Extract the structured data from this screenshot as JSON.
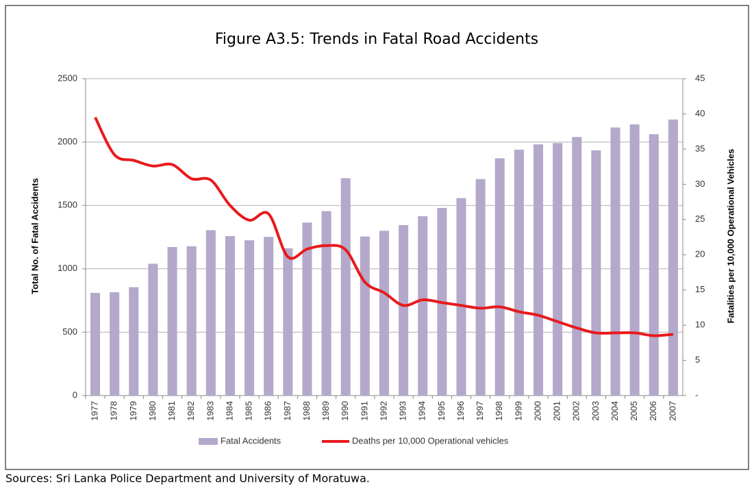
{
  "chart_data": {
    "type": "bar",
    "title": "Figure A3.5: Trends in Fatal Road Accidents",
    "y_label": "Total No. of Fatal  Accidents",
    "y2_label": "Fatalities per 10,000 Operational Vehicles",
    "source": "Sources: Sri Lanka Police Department and University of Moratuwa.",
    "categories": [
      "1977",
      "1978",
      "1979",
      "1980",
      "1981",
      "1982",
      "1983",
      "1984",
      "1985",
      "1986",
      "1987",
      "1988",
      "1989",
      "1990",
      "1991",
      "1992",
      "1993",
      "1994",
      "1995",
      "1996",
      "1997",
      "1998",
      "1999",
      "2000",
      "2001",
      "2002",
      "2003",
      "2004",
      "2005",
      "2006",
      "2007"
    ],
    "series": [
      {
        "name": "Fatal Accidents",
        "type": "bar",
        "color": "#b4a8cb",
        "values": [
          810,
          815,
          855,
          1040,
          1172,
          1178,
          1305,
          1258,
          1225,
          1252,
          1162,
          1365,
          1455,
          1715,
          1255,
          1300,
          1345,
          1415,
          1480,
          1558,
          1708,
          1872,
          1940,
          1982,
          1992,
          2040,
          1935,
          2115,
          2140,
          2062,
          2178
        ]
      },
      {
        "name": "Deaths  per 10,000 Operational vehicles",
        "type": "line",
        "axis": "y2",
        "color": "#e8191c",
        "values": [
          39.5,
          34.2,
          33.4,
          32.6,
          32.8,
          30.8,
          30.6,
          27.0,
          24.9,
          25.8,
          19.7,
          20.8,
          21.3,
          20.7,
          16.1,
          14.6,
          12.8,
          13.6,
          13.2,
          12.8,
          12.4,
          12.6,
          11.9,
          11.4,
          10.5,
          9.6,
          8.9,
          8.9,
          8.9,
          8.5,
          8.7
        ]
      }
    ],
    "ylim": [
      0,
      2500
    ],
    "yticks": [
      0,
      500,
      1000,
      1500,
      2000,
      2500
    ],
    "y2lim": [
      0,
      45
    ],
    "y2ticks": [
      {
        "value": 0,
        "label": "-"
      },
      5,
      10,
      15,
      20,
      25,
      30,
      35,
      40,
      45
    ],
    "grid": true,
    "legend": "bottom"
  }
}
